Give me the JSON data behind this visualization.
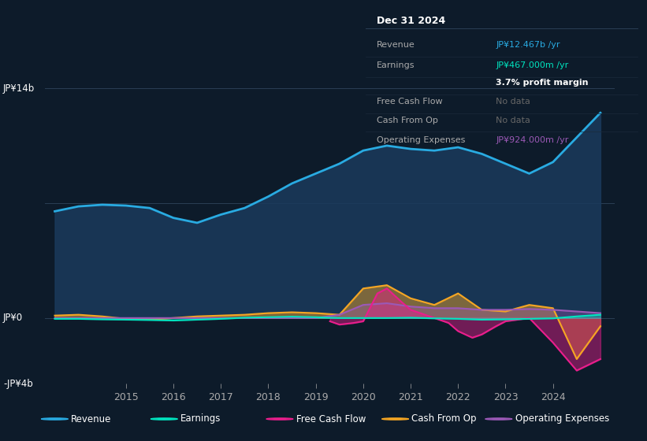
{
  "bg_color": "#0d1b2a",
  "ylim": [
    -4000000000,
    14000000000
  ],
  "legend_items": [
    "Revenue",
    "Earnings",
    "Free Cash Flow",
    "Cash From Op",
    "Operating Expenses"
  ],
  "legend_colors": [
    "#29abe2",
    "#00e5c0",
    "#e91e8c",
    "#f5a623",
    "#9b59b6"
  ],
  "revenue": {
    "x": [
      2013.5,
      2014.0,
      2014.5,
      2015.0,
      2015.5,
      2016.0,
      2016.5,
      2017.0,
      2017.5,
      2018.0,
      2018.5,
      2019.0,
      2019.5,
      2020.0,
      2020.5,
      2021.0,
      2021.5,
      2022.0,
      2022.5,
      2023.0,
      2023.5,
      2024.0,
      2024.5,
      2025.0
    ],
    "y": [
      6500000000,
      6800000000,
      6900000000,
      6850000000,
      6700000000,
      6100000000,
      5800000000,
      6300000000,
      6700000000,
      7400000000,
      8200000000,
      8800000000,
      9400000000,
      10200000000,
      10500000000,
      10300000000,
      10200000000,
      10400000000,
      10000000000,
      9400000000,
      8800000000,
      9500000000,
      11000000000,
      12500000000
    ],
    "color": "#29abe2",
    "fill_color": "#1a3a5c",
    "linewidth": 2.0
  },
  "earnings": {
    "x": [
      2013.5,
      2014.0,
      2014.5,
      2015.0,
      2015.5,
      2016.0,
      2016.5,
      2017.0,
      2017.5,
      2018.0,
      2018.5,
      2019.0,
      2019.5,
      2020.0,
      2020.5,
      2021.0,
      2021.5,
      2022.0,
      2022.5,
      2023.0,
      2023.5,
      2024.0,
      2024.5,
      2025.0
    ],
    "y": [
      -50000000,
      -50000000,
      -80000000,
      -100000000,
      -120000000,
      -150000000,
      -100000000,
      -50000000,
      20000000,
      50000000,
      80000000,
      50000000,
      0,
      0,
      0,
      20000000,
      -20000000,
      -50000000,
      -100000000,
      -80000000,
      -50000000,
      -20000000,
      100000000,
      200000000
    ],
    "color": "#00e5c0",
    "fill_color": "#00e5c0",
    "linewidth": 1.5
  },
  "free_cash_flow": {
    "x": [
      2019.3,
      2019.5,
      2019.8,
      2020.0,
      2020.3,
      2020.5,
      2020.8,
      2021.0,
      2021.3,
      2021.5,
      2021.8,
      2022.0,
      2022.3,
      2022.5,
      2022.8,
      2023.0,
      2023.5,
      2024.0,
      2024.5,
      2025.0
    ],
    "y": [
      -200000000,
      -400000000,
      -300000000,
      -200000000,
      1500000000,
      1800000000,
      1000000000,
      500000000,
      200000000,
      0,
      -300000000,
      -800000000,
      -1200000000,
      -1000000000,
      -500000000,
      -200000000,
      0,
      -1500000000,
      -3200000000,
      -2500000000
    ],
    "color": "#e91e8c",
    "fill_color": "#e91e8c",
    "linewidth": 1.5
  },
  "cash_from_op": {
    "x": [
      2013.5,
      2014.0,
      2014.5,
      2015.0,
      2015.5,
      2016.0,
      2016.5,
      2017.0,
      2017.5,
      2018.0,
      2018.5,
      2019.0,
      2019.5,
      2020.0,
      2020.5,
      2021.0,
      2021.5,
      2022.0,
      2022.5,
      2023.0,
      2023.5,
      2024.0,
      2024.5,
      2025.0
    ],
    "y": [
      150000000,
      200000000,
      100000000,
      -50000000,
      -100000000,
      0,
      100000000,
      150000000,
      200000000,
      300000000,
      350000000,
      300000000,
      200000000,
      1800000000,
      2000000000,
      1200000000,
      800000000,
      1500000000,
      500000000,
      400000000,
      800000000,
      600000000,
      -2500000000,
      -500000000
    ],
    "color": "#f5a623",
    "fill_color": "#f5a623",
    "linewidth": 1.5
  },
  "operating_expenses": {
    "x": [
      2013.5,
      2014.0,
      2014.5,
      2015.0,
      2015.5,
      2016.0,
      2016.5,
      2017.0,
      2017.5,
      2018.0,
      2018.5,
      2019.0,
      2019.5,
      2020.0,
      2020.5,
      2021.0,
      2021.5,
      2022.0,
      2022.5,
      2023.0,
      2023.5,
      2024.0,
      2024.5,
      2025.0
    ],
    "y": [
      0,
      0,
      0,
      0,
      0,
      0,
      0,
      0,
      0,
      0,
      0,
      0,
      200000000,
      800000000,
      900000000,
      700000000,
      600000000,
      600000000,
      500000000,
      500000000,
      550000000,
      500000000,
      400000000,
      300000000
    ],
    "color": "#9b59b6",
    "fill_color": "#9b59b6",
    "linewidth": 1.5
  },
  "x_ticks": [
    2015,
    2016,
    2017,
    2018,
    2019,
    2020,
    2021,
    2022,
    2023,
    2024
  ],
  "x_tick_labels": [
    "2015",
    "2016",
    "2017",
    "2018",
    "2019",
    "2020",
    "2021",
    "2022",
    "2023",
    "2024"
  ],
  "info_title": "Dec 31 2024",
  "info_rows": [
    {
      "label": "Revenue",
      "value": "JP¥12.467b /yr",
      "value_color": "#29abe2",
      "bold": false
    },
    {
      "label": "Earnings",
      "value": "JP¥467.000m /yr",
      "value_color": "#00e5c0",
      "bold": false
    },
    {
      "label": "",
      "value": "3.7% profit margin",
      "value_color": "#ffffff",
      "bold": true
    },
    {
      "label": "Free Cash Flow",
      "value": "No data",
      "value_color": "#666666",
      "bold": false
    },
    {
      "label": "Cash From Op",
      "value": "No data",
      "value_color": "#666666",
      "bold": false
    },
    {
      "label": "Operating Expenses",
      "value": "JP¥924.000m /yr",
      "value_color": "#9b59b6",
      "bold": false
    }
  ]
}
